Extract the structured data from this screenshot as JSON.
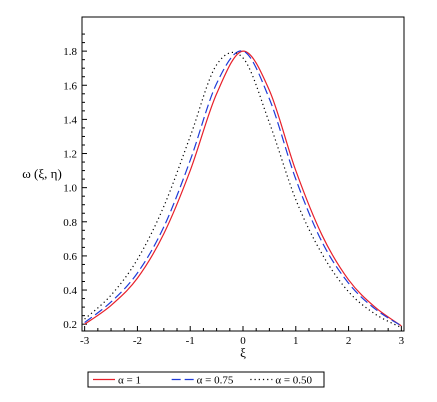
{
  "chart_data": {
    "type": "line",
    "title": "",
    "xlabel": "ξ",
    "ylabel": "ω (ξ, η)",
    "xlim": [
      -3.05,
      3.05
    ],
    "ylim": [
      0.16,
      2.0
    ],
    "x_ticks": [
      -3,
      -2,
      -1,
      0,
      1,
      2,
      3
    ],
    "y_ticks": [
      0.2,
      0.4,
      0.6,
      0.8,
      1.0,
      1.2,
      1.4,
      1.6,
      1.8
    ],
    "x_tick_labels": [
      "-3",
      "-2",
      "-1",
      "0",
      "1",
      "2",
      "3"
    ],
    "y_tick_labels": [
      "0.2",
      "0.4",
      "0.6",
      "0.8",
      "1.0",
      "1.2",
      "1.4",
      "1.6",
      "1.8"
    ],
    "grid": false,
    "legend_position": "bottom",
    "series": [
      {
        "name": "α = 1",
        "color": "#e8202a",
        "dash": "solid",
        "x": [
          -3,
          -2.5,
          -2,
          -1.5,
          -1,
          -0.5,
          0,
          0.5,
          1,
          1.5,
          2,
          2.5,
          3
        ],
        "y": [
          0.2,
          0.31,
          0.47,
          0.73,
          1.1,
          1.55,
          1.8,
          1.57,
          1.1,
          0.72,
          0.46,
          0.3,
          0.19
        ]
      },
      {
        "name": "α = 0.75",
        "color": "#1f3bd9",
        "dash": "longdash",
        "x": [
          -3,
          -2.5,
          -2,
          -1.5,
          -1,
          -0.5,
          0,
          0.5,
          1,
          1.5,
          2,
          2.5,
          3
        ],
        "y": [
          0.21,
          0.33,
          0.5,
          0.77,
          1.16,
          1.61,
          1.8,
          1.52,
          1.05,
          0.68,
          0.44,
          0.29,
          0.19
        ]
      },
      {
        "name": "α = 0.50",
        "color": "#000000",
        "dash": "dotted",
        "x": [
          -3,
          -2.5,
          -2,
          -1.5,
          -1,
          -0.5,
          0,
          0.5,
          1,
          1.5,
          2,
          2.5,
          3
        ],
        "y": [
          0.23,
          0.37,
          0.58,
          0.89,
          1.3,
          1.72,
          1.76,
          1.38,
          0.93,
          0.61,
          0.39,
          0.26,
          0.18
        ]
      }
    ]
  }
}
